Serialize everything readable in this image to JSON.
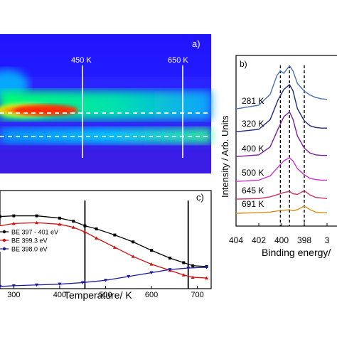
{
  "chart_data": [
    {
      "panel": "a)",
      "type": "heatmap",
      "annotations": [
        "450 K",
        "650 K"
      ],
      "markers_temperature": [
        450,
        650
      ],
      "dashed_rows": "two horizontal dashed white lines",
      "colors": {
        "low": "#2a10ff",
        "mid": "#00ff80",
        "high": "#ff2000"
      }
    },
    {
      "panel": "c)",
      "type": "line",
      "xlabel": "Temperature/ K",
      "xticks": [
        300,
        400,
        500,
        600,
        700
      ],
      "xlim": [
        270,
        730
      ],
      "ylim": [
        0,
        1
      ],
      "vertical_markers": [
        455,
        680
      ],
      "series": [
        {
          "name": "BE 397 - 401 eV",
          "color": "#000000",
          "marker": "square",
          "x": [
            270,
            300,
            350,
            400,
            430,
            455,
            480,
            520,
            560,
            600,
            640,
            670,
            690,
            720
          ],
          "y": [
            0.92,
            0.93,
            0.93,
            0.9,
            0.86,
            0.8,
            0.76,
            0.68,
            0.59,
            0.48,
            0.38,
            0.32,
            0.28,
            0.27
          ]
        },
        {
          "name": "BE 399.3 eV",
          "color": "#d01010",
          "marker": "triangle",
          "x": [
            270,
            300,
            350,
            400,
            430,
            455,
            480,
            520,
            560,
            600,
            640,
            670,
            690,
            720
          ],
          "y": [
            0.8,
            0.83,
            0.84,
            0.82,
            0.78,
            0.72,
            0.64,
            0.52,
            0.4,
            0.3,
            0.22,
            0.16,
            0.13,
            0.12
          ]
        },
        {
          "name": "BE 398.0 eV",
          "color": "#1a1aa0",
          "marker": "triangle-down",
          "x": [
            270,
            300,
            350,
            400,
            450,
            500,
            550,
            600,
            640,
            680,
            720
          ],
          "y": [
            0.01,
            0.02,
            0.03,
            0.04,
            0.06,
            0.09,
            0.14,
            0.19,
            0.23,
            0.25,
            0.26
          ]
        }
      ],
      "legend_position": "left-middle"
    },
    {
      "panel": "b)",
      "type": "line",
      "xlabel": "Binding energy/",
      "ylabel": "Intensity / Arb. Units",
      "xticks": [
        "404",
        "402",
        "400",
        "398",
        "3"
      ],
      "x_reversed": true,
      "dashed_lines_at": [
        400.1,
        399.3,
        398.0
      ],
      "series": [
        {
          "name": "281 K",
          "color": "#4a6fb0",
          "x": [
            404,
            402,
            401,
            400.4,
            400.1,
            399.8,
            399.3,
            399.0,
            398.6,
            398,
            397.5,
            397,
            396.5,
            396
          ],
          "y": [
            0.02,
            0.08,
            0.25,
            0.55,
            0.62,
            0.58,
            0.7,
            0.62,
            0.42,
            0.3,
            0.24,
            0.2,
            0.18,
            0.17
          ]
        },
        {
          "name": "320 K",
          "color": "#1e2a7a",
          "x": [
            404,
            402,
            401,
            400.3,
            399.8,
            399.3,
            399.0,
            398.6,
            398,
            397.5,
            397,
            396.5,
            396
          ],
          "y": [
            0.02,
            0.06,
            0.22,
            0.55,
            0.72,
            0.8,
            0.7,
            0.4,
            0.2,
            0.12,
            0.09,
            0.08,
            0.08
          ]
        },
        {
          "name": "400 K",
          "color": "#7b1fa2",
          "x": [
            404,
            402,
            401,
            400.3,
            399.8,
            399.3,
            399.0,
            398.6,
            398,
            397.5,
            397,
            396.5,
            396
          ],
          "y": [
            0.02,
            0.05,
            0.18,
            0.48,
            0.68,
            0.76,
            0.64,
            0.36,
            0.16,
            0.08,
            0.05,
            0.04,
            0.04
          ]
        },
        {
          "name": "500 K",
          "color": "#cc33cc",
          "x": [
            404,
            402,
            401,
            400.3,
            399.8,
            399.3,
            399.0,
            398.6,
            398,
            397.5,
            397,
            396.5,
            396
          ],
          "y": [
            0.01,
            0.03,
            0.1,
            0.25,
            0.35,
            0.4,
            0.35,
            0.22,
            0.12,
            0.06,
            0.04,
            0.03,
            0.03
          ]
        },
        {
          "name": "645 K",
          "color": "#cc3366",
          "x": [
            404,
            402,
            401,
            400.3,
            399.8,
            399.3,
            399.0,
            398.6,
            398,
            397.5,
            397,
            396.5,
            396
          ],
          "y": [
            0.01,
            0.02,
            0.05,
            0.09,
            0.12,
            0.14,
            0.1,
            0.09,
            0.15,
            0.08,
            0.04,
            0.03,
            0.02
          ]
        },
        {
          "name": "691 K",
          "color": "#d4901f",
          "x": [
            404,
            402,
            401,
            400.3,
            399.8,
            399.3,
            399.0,
            398.6,
            398,
            397.5,
            397,
            396.5,
            396
          ],
          "y": [
            0.0,
            0.01,
            0.02,
            0.04,
            0.05,
            0.06,
            0.04,
            0.06,
            0.12,
            0.06,
            0.02,
            0.01,
            0.01
          ]
        }
      ]
    }
  ]
}
